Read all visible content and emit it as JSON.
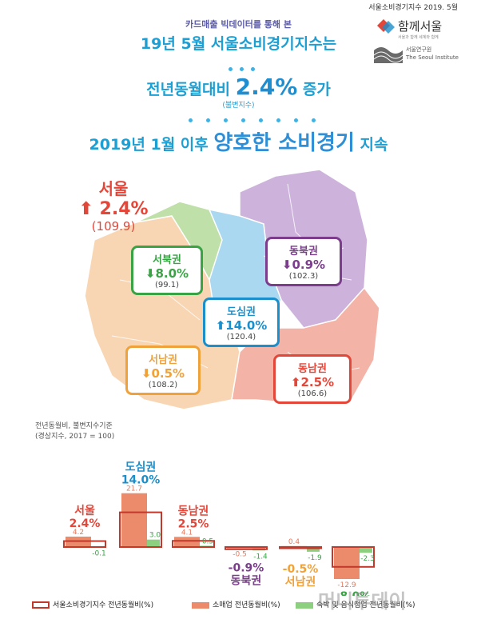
{
  "header": {
    "source_line": "서울소비경기지수 2019. 5월",
    "subtitle": "카드매출 빅데이터를 통해 본",
    "headline1": "19년 5월 서울소비경기지수는",
    "headline2_pre": "전년동월대비",
    "headline2_value": "2.4%",
    "headline2_post": "증가",
    "headline2_note": "(불변지수)",
    "headline3_pre": "2019년 1월 이후",
    "headline3_big": "양호한 소비경기",
    "headline3_post": "지속"
  },
  "logos": {
    "seoul_brand": "함께서울",
    "seoul_brand_tag": "서울과 함께 세계와 함께",
    "institute_ko": "서울연구원",
    "institute_en": "The Seoul Institute"
  },
  "map": {
    "seoul": {
      "name": "서울",
      "change": "2.4%",
      "index": "(109.9)",
      "direction": "up",
      "color": "#e3473a"
    },
    "regions": [
      {
        "id": "seobuk",
        "name": "서북권",
        "change": "8.0%",
        "index": "(99.1)",
        "direction": "down",
        "color": "#3aa346",
        "fill": "#bfe0a8"
      },
      {
        "id": "dongbuk",
        "name": "동북권",
        "change": "0.9%",
        "index": "(102.3)",
        "direction": "down",
        "color": "#7b3d8c",
        "fill": "#cdb3dc"
      },
      {
        "id": "dosim",
        "name": "도심권",
        "change": "14.0%",
        "index": "(120.4)",
        "direction": "up",
        "color": "#1b8fcb",
        "fill": "#a9d8f0"
      },
      {
        "id": "seonam",
        "name": "서남권",
        "change": "0.5%",
        "index": "(108.2)",
        "direction": "down",
        "color": "#f0a23a",
        "fill": "#f8d6b3"
      },
      {
        "id": "dongnam",
        "name": "동남권",
        "change": "2.5%",
        "index": "(106.6)",
        "direction": "up",
        "color": "#e3473a",
        "fill": "#f4b3a7"
      }
    ]
  },
  "chart_note": [
    "전년동월비, 불변지수기준",
    "(경상지수, 2017 = 100)"
  ],
  "chart_data": {
    "type": "bar",
    "categories": [
      "서울",
      "도심권",
      "동남권",
      "동북권",
      "서남권",
      "서북권"
    ],
    "category_colors": [
      "#e3473a",
      "#1b8fcb",
      "#e3473a",
      "#7b3d8c",
      "#f0a23a",
      "#3aa346"
    ],
    "headline_values": [
      "2.4%",
      "14.0%",
      "2.5%",
      "-0.9%",
      "-0.5%",
      "-8.0%"
    ],
    "series": [
      {
        "name": "서울소비경기지수 전년동월비(%)",
        "style": "outline",
        "color": "#c0392b",
        "values": [
          2.4,
          14.0,
          2.5,
          -0.9,
          -0.5,
          -8.0
        ]
      },
      {
        "name": "소매업 전년동월비(%)",
        "style": "filled",
        "color": "#ec8a6c",
        "values": [
          4.2,
          21.7,
          4.1,
          -0.5,
          0.4,
          -12.9
        ]
      },
      {
        "name": "숙박 및 음식점업 전년동월비(%)",
        "style": "filled",
        "color": "#8ccf7e",
        "values": [
          -0.1,
          3.0,
          0.5,
          -1.4,
          -1.9,
          -2.3
        ]
      }
    ],
    "data_labels": {
      "retail": [
        "4.2",
        "21.7",
        "4.1",
        "-0.5",
        "0.4",
        "-12.9"
      ],
      "food": [
        "-0.1",
        "3.0",
        "0.5",
        "-1.4",
        "-1.9",
        "-2.3"
      ]
    },
    "legend_position": "bottom"
  },
  "watermark": "머니투데이"
}
